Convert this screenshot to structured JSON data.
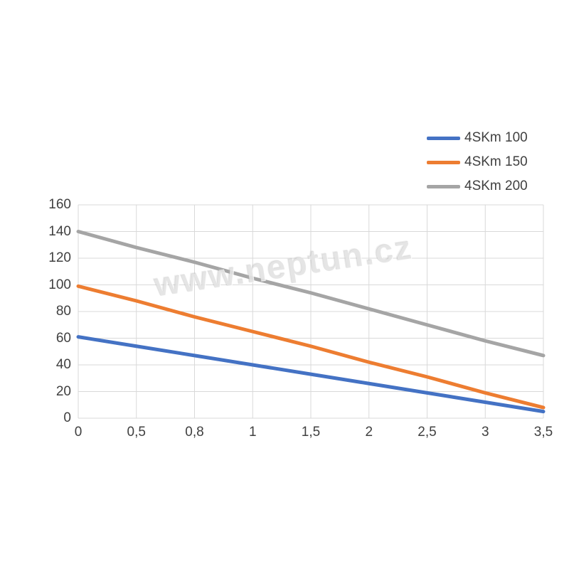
{
  "page": {
    "background_color": "#ffffff",
    "text_color": "#404040",
    "gridline_color": "#d9d9d9"
  },
  "watermark": {
    "text": "www.neptun.cz"
  },
  "legend": {
    "position": "top-right",
    "items": [
      {
        "label": "4SKm 100",
        "color": "#4472C4"
      },
      {
        "label": "4SKm 150",
        "color": "#ED7D31"
      },
      {
        "label": "4SKm 200",
        "color": "#A5A5A5"
      }
    ]
  },
  "chart_data": {
    "type": "line",
    "title": "",
    "xlabel": "",
    "ylabel": "",
    "categories": [
      "0",
      "0,5",
      "0,8",
      "1",
      "1,5",
      "2",
      "2,5",
      "3",
      "3,5"
    ],
    "series": [
      {
        "name": "4SKm 100",
        "color": "#4472C4",
        "values": [
          61,
          54,
          47,
          40,
          33,
          26,
          19,
          12,
          5
        ]
      },
      {
        "name": "4SKm 150",
        "color": "#ED7D31",
        "values": [
          99,
          88,
          76,
          65,
          54,
          42,
          31,
          19,
          8
        ]
      },
      {
        "name": "4SKm 200",
        "color": "#A5A5A5",
        "values": [
          140,
          128,
          117,
          105,
          94,
          82,
          70,
          58,
          47
        ]
      }
    ],
    "ylim": [
      0,
      160
    ],
    "yticks": [
      0,
      20,
      40,
      60,
      80,
      100,
      120,
      140,
      160
    ],
    "grid": true,
    "grid_vertical": true,
    "legend_position": "top-right"
  }
}
